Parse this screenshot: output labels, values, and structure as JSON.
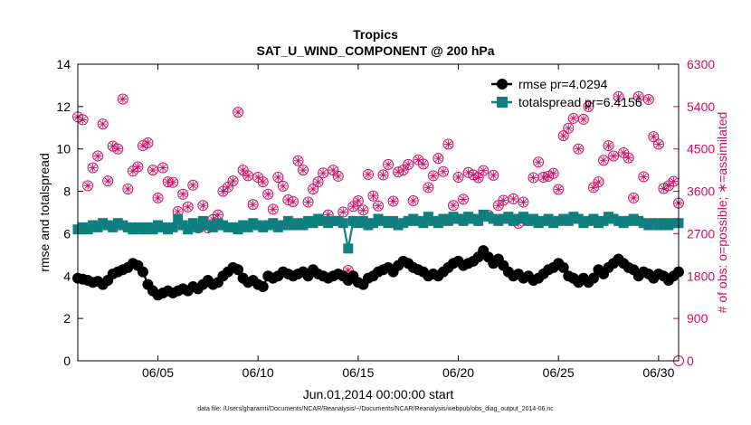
{
  "chart_data": {
    "type": "line",
    "title": "Tropics",
    "subtitle": "SAT_U_WIND_COMPONENT @ 200 hPa",
    "xlabel": "Jun.01,2014 00:00:00 start",
    "ylabel": "rmse and totalspread",
    "y2label": "# of obs: o=possible; ∗=assimilated",
    "xlim": [
      1,
      31
    ],
    "ylim": [
      0,
      14
    ],
    "y2lim": [
      0,
      6300
    ],
    "x_ticks": [
      5,
      10,
      15,
      20,
      25,
      30
    ],
    "x_tick_labels": [
      "06/05",
      "06/10",
      "06/15",
      "06/20",
      "06/25",
      "06/30"
    ],
    "y_ticks": [
      0,
      2,
      4,
      6,
      8,
      10,
      12,
      14
    ],
    "y_tick_labels": [
      "0",
      "2",
      "4",
      "6",
      "8",
      "10",
      "12",
      "14"
    ],
    "y2_ticks": [
      0,
      900,
      1800,
      2700,
      3600,
      4500,
      5400,
      6300
    ],
    "y2_tick_labels": [
      "0",
      "900",
      "1800",
      "2700",
      "3600",
      "4500",
      "5400",
      "6300"
    ],
    "legend_position": "top-right",
    "colors": {
      "rmse": "#000000",
      "totalspread": "#0f7f7f",
      "obs": "#cc0e66",
      "axis": "#000000"
    },
    "series": [
      {
        "name": "rmse",
        "legend_label": "rmse pr=4.0294",
        "x": [
          1,
          1.25,
          1.5,
          1.75,
          2,
          2.25,
          2.5,
          2.75,
          3,
          3.25,
          3.5,
          3.75,
          4,
          4.25,
          4.5,
          4.75,
          5,
          5.25,
          5.5,
          5.75,
          6,
          6.25,
          6.5,
          6.75,
          7,
          7.25,
          7.5,
          7.75,
          8,
          8.25,
          8.5,
          8.75,
          9,
          9.25,
          9.5,
          9.75,
          10,
          10.25,
          10.5,
          10.75,
          11,
          11.25,
          11.5,
          11.75,
          12,
          12.25,
          12.5,
          12.75,
          13,
          13.25,
          13.5,
          13.75,
          14,
          14.25,
          14.5,
          14.75,
          15,
          15.25,
          15.5,
          15.75,
          16,
          16.25,
          16.5,
          16.75,
          17,
          17.25,
          17.5,
          17.75,
          18,
          18.25,
          18.5,
          18.75,
          19,
          19.25,
          19.5,
          19.75,
          20,
          20.25,
          20.5,
          20.75,
          21,
          21.25,
          21.5,
          21.75,
          22,
          22.25,
          22.5,
          22.75,
          23,
          23.25,
          23.5,
          23.75,
          24,
          24.25,
          24.5,
          24.75,
          25,
          25.25,
          25.5,
          25.75,
          26,
          26.25,
          26.5,
          26.75,
          27,
          27.25,
          27.5,
          27.75,
          28,
          28.25,
          28.5,
          28.75,
          29,
          29.25,
          29.5,
          29.75,
          30,
          30.25,
          30.5,
          30.75,
          31
        ],
        "values": [
          3.9,
          3.85,
          3.8,
          3.7,
          3.75,
          3.6,
          3.8,
          4.1,
          4.2,
          4.3,
          4.4,
          4.6,
          4.5,
          4.2,
          3.6,
          3.3,
          3.1,
          3.2,
          3.3,
          3.2,
          3.3,
          3.4,
          3.3,
          3.5,
          3.4,
          3.6,
          3.8,
          3.6,
          3.7,
          4.0,
          4.2,
          4.4,
          4.3,
          3.9,
          3.7,
          3.8,
          3.6,
          3.5,
          4.0,
          3.9,
          4.0,
          4.2,
          4.1,
          4.0,
          4.1,
          4.2,
          4.0,
          4.3,
          4.1,
          4.0,
          3.9,
          4.0,
          4.1,
          4.0,
          3.8,
          4.0,
          3.7,
          3.6,
          3.9,
          4.0,
          4.2,
          4.3,
          4.4,
          4.2,
          4.5,
          4.7,
          4.6,
          4.4,
          4.3,
          4.2,
          4.0,
          4.1,
          4.0,
          4.2,
          4.4,
          4.6,
          4.7,
          4.5,
          4.6,
          4.7,
          4.9,
          5.2,
          4.9,
          4.6,
          4.8,
          4.5,
          4.2,
          4.0,
          4.1,
          3.9,
          4.0,
          3.8,
          3.9,
          4.1,
          4.3,
          4.4,
          4.6,
          4.4,
          4.0,
          3.9,
          3.7,
          3.9,
          3.7,
          3.9,
          4.3,
          4.1,
          4.4,
          4.6,
          4.8,
          4.6,
          4.4,
          4.3,
          4.0,
          4.2,
          4.1,
          3.9,
          4.1,
          4.0,
          3.8,
          4.0,
          4.2
        ]
      },
      {
        "name": "totalspread",
        "legend_label": "totalspread pr=6.4156",
        "x": [
          1,
          1.25,
          1.5,
          1.75,
          2,
          2.25,
          2.5,
          2.75,
          3,
          3.25,
          3.5,
          3.75,
          4,
          4.25,
          4.5,
          4.75,
          5,
          5.25,
          5.5,
          5.75,
          6,
          6.25,
          6.5,
          6.75,
          7,
          7.25,
          7.5,
          7.75,
          8,
          8.25,
          8.5,
          8.75,
          9,
          9.25,
          9.5,
          9.75,
          10,
          10.25,
          10.5,
          10.75,
          11,
          11.25,
          11.5,
          11.75,
          12,
          12.25,
          12.5,
          12.75,
          13,
          13.25,
          13.5,
          13.75,
          14,
          14.25,
          14.5,
          14.75,
          15,
          15.25,
          15.5,
          15.75,
          16,
          16.25,
          16.5,
          16.75,
          17,
          17.25,
          17.5,
          17.75,
          18,
          18.25,
          18.5,
          18.75,
          19,
          19.25,
          19.5,
          19.75,
          20,
          20.25,
          20.5,
          20.75,
          21,
          21.25,
          21.5,
          21.75,
          22,
          22.25,
          22.5,
          22.75,
          23,
          23.25,
          23.5,
          23.75,
          24,
          24.25,
          24.5,
          24.75,
          25,
          25.25,
          25.5,
          25.75,
          26,
          26.25,
          26.5,
          26.75,
          27,
          27.25,
          27.5,
          27.75,
          28,
          28.25,
          28.5,
          28.75,
          29,
          29.25,
          29.5,
          29.75,
          30,
          30.25,
          30.5,
          30.75,
          31
        ],
        "values": [
          6.2,
          6.3,
          6.2,
          6.4,
          6.3,
          6.5,
          6.4,
          6.3,
          6.5,
          6.4,
          6.3,
          6.2,
          6.3,
          6.2,
          6.3,
          6.2,
          6.4,
          6.3,
          6.2,
          6.3,
          6.7,
          6.4,
          6.2,
          6.5,
          6.3,
          6.6,
          6.4,
          6.3,
          6.5,
          6.4,
          6.3,
          6.3,
          6.2,
          6.4,
          6.3,
          6.5,
          6.4,
          6.3,
          6.4,
          6.5,
          6.3,
          6.4,
          6.6,
          6.4,
          6.5,
          6.4,
          6.6,
          6.5,
          6.7,
          6.6,
          6.5,
          6.6,
          6.6,
          6.5,
          5.3,
          6.6,
          6.5,
          6.6,
          6.4,
          6.5,
          6.7,
          6.6,
          6.5,
          6.6,
          6.4,
          6.5,
          6.6,
          6.7,
          6.6,
          6.5,
          6.8,
          6.6,
          6.5,
          6.7,
          6.6,
          6.8,
          6.7,
          6.6,
          6.8,
          6.7,
          6.6,
          6.9,
          6.8,
          6.7,
          6.6,
          6.7,
          6.8,
          6.6,
          6.7,
          6.8,
          6.6,
          6.7,
          6.5,
          6.6,
          6.7,
          6.5,
          6.6,
          6.7,
          6.6,
          6.8,
          6.7,
          6.5,
          6.6,
          6.7,
          6.5,
          6.6,
          6.8,
          6.7,
          6.6,
          6.5,
          6.6,
          6.7,
          6.6,
          6.5,
          6.4,
          6.5,
          6.4,
          6.5,
          6.4,
          6.5,
          6.5
        ]
      },
      {
        "name": "obs-possible",
        "axis": "right",
        "x": [
          1,
          1.25,
          1.5,
          1.75,
          2,
          2.25,
          2.5,
          2.75,
          3,
          3.25,
          3.5,
          3.75,
          4,
          4.25,
          4.5,
          4.75,
          5,
          5.25,
          5.5,
          5.75,
          6,
          6.25,
          6.5,
          6.75,
          7,
          7.25,
          7.5,
          7.75,
          8,
          8.25,
          8.5,
          8.75,
          9,
          9.25,
          9.5,
          9.75,
          10,
          10.25,
          10.5,
          10.75,
          11,
          11.25,
          11.5,
          11.75,
          12,
          12.25,
          12.5,
          12.75,
          13,
          13.25,
          13.5,
          13.75,
          14,
          14.25,
          14.5,
          14.75,
          15,
          15.25,
          15.5,
          15.75,
          16,
          16.25,
          16.5,
          16.75,
          17,
          17.25,
          17.5,
          17.75,
          18,
          18.25,
          18.5,
          18.75,
          19,
          19.25,
          19.5,
          19.75,
          20,
          20.25,
          20.5,
          20.75,
          21,
          21.25,
          21.5,
          21.75,
          22,
          22.25,
          22.5,
          22.75,
          23,
          23.25,
          23.5,
          23.75,
          24,
          24.25,
          24.5,
          24.75,
          25,
          25.25,
          25.5,
          25.75,
          26,
          26.25,
          26.5,
          26.75,
          27,
          27.25,
          27.5,
          27.75,
          28,
          28.25,
          28.5,
          28.75,
          29,
          29.25,
          29.5,
          29.75,
          30,
          30.25,
          30.5,
          30.75,
          31
        ],
        "values": [
          5180,
          5120,
          3720,
          4100,
          4350,
          5030,
          3820,
          4560,
          4500,
          5560,
          3650,
          4030,
          4120,
          4570,
          4630,
          4050,
          3460,
          4100,
          3800,
          3790,
          3170,
          3540,
          3270,
          3730,
          2820,
          3300,
          2820,
          3000,
          3100,
          3600,
          3690,
          3820,
          5280,
          4050,
          3930,
          3320,
          3900,
          3800,
          3540,
          3220,
          3900,
          3710,
          3420,
          3380,
          4250,
          4050,
          3370,
          3650,
          3800,
          3990,
          3100,
          4050,
          3920,
          3160,
          1920,
          3280,
          3400,
          3200,
          3960,
          3500,
          3290,
          3950,
          4170,
          3390,
          4010,
          4050,
          4170,
          3400,
          4270,
          4180,
          3680,
          3930,
          4300,
          4020,
          4600,
          3300,
          3900,
          3430,
          4000,
          3950,
          3890,
          4040,
          3090,
          3940,
          3300,
          3410,
          3050,
          3440,
          2920,
          3370,
          3000,
          3890,
          4220,
          3900,
          3920,
          3980,
          3640,
          4780,
          4940,
          5150,
          4500,
          5130,
          5400,
          3680,
          3800,
          4260,
          4570,
          4350,
          5610,
          4420,
          4310,
          3460,
          5610,
          3910,
          5550,
          4760,
          4600,
          3660,
          3720,
          3810,
          3350
        ]
      }
    ],
    "footer": "data file: /Users/gharamti/Documents/NCAR/Reanalysis/~/Documents/NCAR/Reanalysis/webpub/obs_diag_output_2014-06.nc"
  }
}
